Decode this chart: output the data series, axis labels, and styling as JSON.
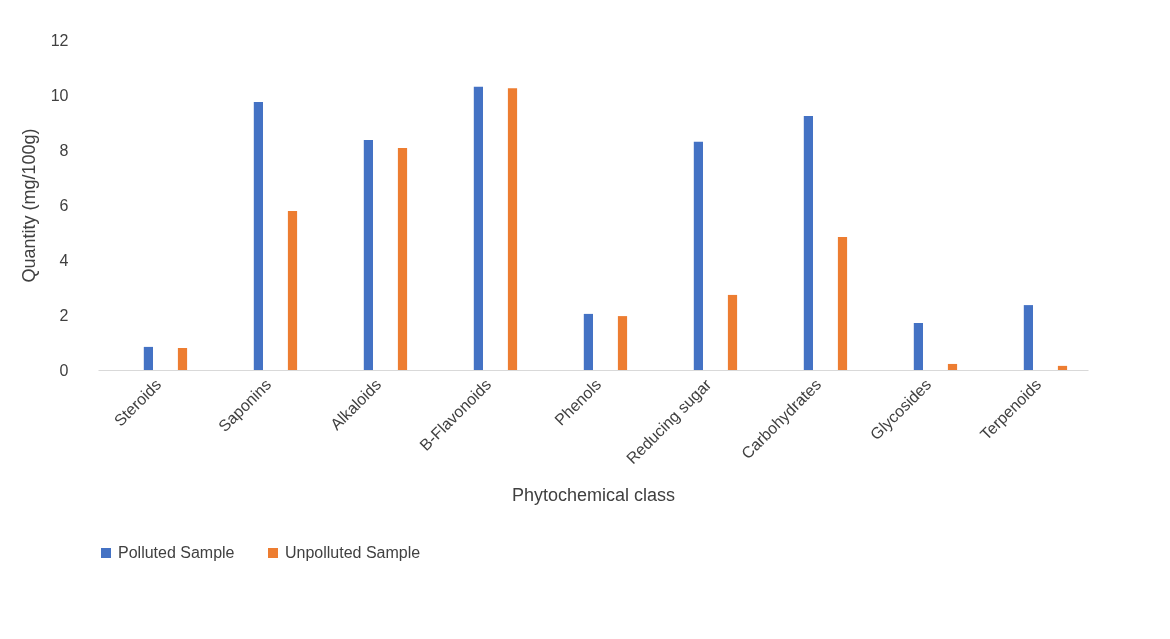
{
  "chart_data": {
    "type": "bar",
    "xlabel": "Phytochemical class",
    "ylabel": "Quantity (mg/100g)",
    "categories": [
      "Steroids",
      "Saponins",
      "Alkaloids",
      "B-Flavonoids",
      "Phenols",
      "Reducing sugar",
      "Carbohydrates",
      "Glycosides",
      "Terpenoids"
    ],
    "series": [
      {
        "name": "Polluted Sample",
        "color": "#4472c4",
        "values": [
          0.84,
          9.75,
          8.36,
          10.3,
          2.04,
          8.3,
          9.24,
          1.71,
          2.36
        ]
      },
      {
        "name": "Unpolluted Sample",
        "color": "#ed7d31",
        "values": [
          0.8,
          5.78,
          8.07,
          10.25,
          1.96,
          2.73,
          4.84,
          0.22,
          0.15
        ]
      }
    ],
    "ylim": [
      0,
      12
    ],
    "yticks": [
      0,
      2,
      4,
      6,
      8,
      10,
      12
    ],
    "grid": false,
    "legend": "bottom"
  }
}
